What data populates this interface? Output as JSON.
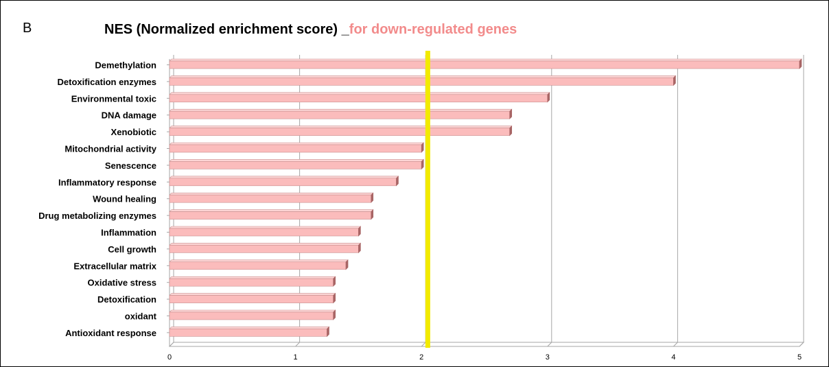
{
  "panel_label": "B",
  "title": {
    "main": "NES (Normalized enrichment score) _",
    "highlight": "for down-regulated genes"
  },
  "colors": {
    "bar_fill": "#fbbcbc",
    "bar_edge": "#c98e8e",
    "bar_side": "#a86565",
    "threshold": "#f2ea00",
    "highlight_text": "#f28b8b",
    "grid": "#a6a6a6"
  },
  "chart_data": {
    "type": "bar",
    "orientation": "horizontal",
    "title": "NES (Normalized enrichment score) _for down-regulated genes",
    "categories": [
      "Demethylation",
      "Detoxification enzymes",
      "Environmental toxic",
      "DNA damage",
      "Xenobiotic",
      "Mitochondrial activity",
      "Senescence",
      "Inflammatory response",
      "Wound healing",
      "Drug metabolizing enzymes",
      "Inflammation",
      "Cell growth",
      "Extracellular matrix",
      "Oxidative stress",
      "Detoxification",
      "oxidant",
      "Antioxidant response"
    ],
    "values": [
      5.0,
      4.0,
      3.0,
      2.7,
      2.7,
      2.0,
      2.0,
      1.8,
      1.6,
      1.6,
      1.5,
      1.5,
      1.4,
      1.3,
      1.3,
      1.3,
      1.25
    ],
    "xlim": [
      0,
      5
    ],
    "xticks": [
      "0",
      "1",
      "2",
      "3",
      "4",
      "5"
    ],
    "threshold_x": 2.05,
    "grid": true,
    "xlabel": "",
    "ylabel": ""
  }
}
